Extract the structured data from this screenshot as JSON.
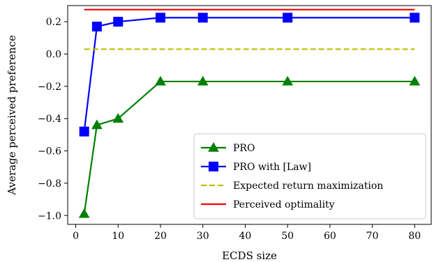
{
  "chart_data": {
    "type": "line",
    "title": "",
    "xlabel": "ECDS size",
    "ylabel": "Average perceived preference",
    "xlim": [
      -1.9,
      83.9
    ],
    "ylim": [
      -1.055,
      0.3
    ],
    "xticks": [
      0,
      10,
      20,
      30,
      40,
      50,
      60,
      70,
      80
    ],
    "xtick_labels": [
      "0",
      "10",
      "20",
      "30",
      "40",
      "50",
      "60",
      "70",
      "80"
    ],
    "yticks": [
      -1.0,
      -0.8,
      -0.6,
      -0.4,
      -0.2,
      0.0,
      0.2
    ],
    "ytick_labels": [
      "−1.0",
      "−0.8",
      "−0.6",
      "−0.4",
      "−0.2",
      "0.0",
      "0.2"
    ],
    "grid": false,
    "legend_position": "lower-right",
    "series": [
      {
        "name": "PRO",
        "color": "#008000",
        "linestyle": "solid",
        "marker": "triangle",
        "x": [
          2,
          5,
          10,
          20,
          30,
          50,
          80
        ],
        "y": [
          -0.99,
          -0.44,
          -0.4,
          -0.17,
          -0.17,
          -0.17,
          -0.17
        ]
      },
      {
        "name": "PRO with [Law]",
        "color": "#0000ff",
        "linestyle": "solid",
        "marker": "square",
        "x": [
          2,
          5,
          10,
          20,
          30,
          50,
          80
        ],
        "y": [
          -0.48,
          0.17,
          0.2,
          0.225,
          0.225,
          0.225,
          0.225
        ]
      },
      {
        "name": "Expected return maximization",
        "color": "#bfbf00",
        "linestyle": "dashed",
        "marker": "none",
        "x": [
          2,
          80
        ],
        "y": [
          0.03,
          0.03
        ]
      },
      {
        "name": "Perceived optimality",
        "color": "#ff0000",
        "linestyle": "solid",
        "marker": "none",
        "x": [
          2,
          80
        ],
        "y": [
          0.275,
          0.275
        ]
      }
    ]
  }
}
